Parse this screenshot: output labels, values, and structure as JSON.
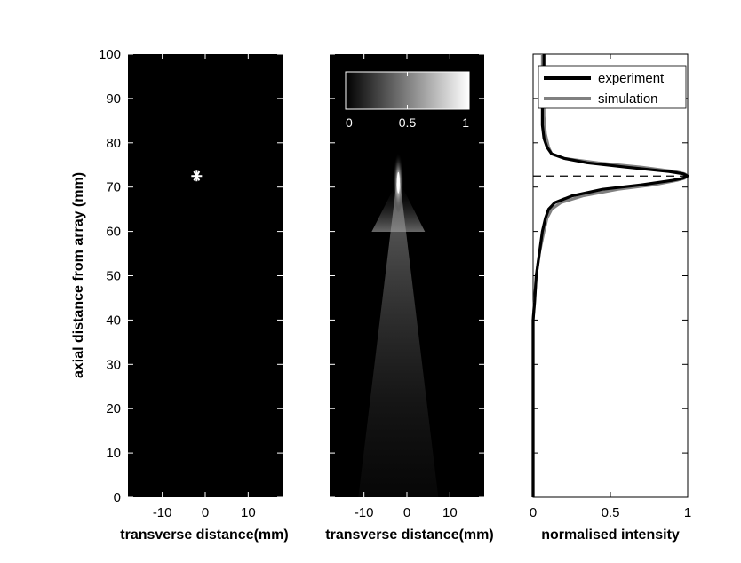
{
  "chart_data": [
    {
      "type": "scatter",
      "panel": "target-position",
      "background": "#000000",
      "xlabel": "transverse distance(mm)",
      "ylabel": "axial distance from array (mm)",
      "xlim": [
        -18,
        18
      ],
      "ylim": [
        100,
        0
      ],
      "x_ticks": [
        "-10",
        "0",
        "10"
      ],
      "y_ticks": [
        "0",
        "10",
        "20",
        "30",
        "40",
        "50",
        "60",
        "70",
        "80",
        "90",
        "100"
      ],
      "points": [
        {
          "x": -2,
          "y": 72.5,
          "marker": "*",
          "color": "#ffffff"
        }
      ]
    },
    {
      "type": "heatmap",
      "panel": "intensity-field",
      "xlabel": "transverse distance(mm)",
      "ylabel": "",
      "xlim": [
        -18,
        18
      ],
      "ylim": [
        100,
        0
      ],
      "x_ticks": [
        "-10",
        "0",
        "10"
      ],
      "colormap": "gray",
      "colorbar": {
        "range": [
          0,
          1
        ],
        "ticks": [
          "0",
          "0.5",
          "1"
        ],
        "location": "top-inset"
      },
      "focus": {
        "x": -2,
        "y": 71,
        "peak": 1.0
      }
    },
    {
      "type": "line",
      "panel": "axial-profile",
      "xlabel": "normalised intensity",
      "ylabel": "",
      "xlim": [
        0,
        1
      ],
      "ylim": [
        100,
        0
      ],
      "x_ticks": [
        "0",
        "0.5",
        "1"
      ],
      "legend": "top-right",
      "reference_line": {
        "y": 72.5,
        "style": "dashed"
      },
      "series": [
        {
          "name": "experiment",
          "color": "#000000",
          "axial_mm": [
            0,
            10,
            20,
            30,
            40,
            44,
            50,
            55,
            60,
            63,
            65,
            66.5,
            68,
            69.5,
            70.5,
            71.5,
            72,
            72.5,
            73,
            73.5,
            74.5,
            75.5,
            76.5,
            77.5,
            79,
            81,
            84,
            88,
            92,
            96,
            100
          ],
          "intensity": [
            0.0,
            0.0,
            0.0,
            0.0,
            0.0,
            0.01,
            0.02,
            0.04,
            0.06,
            0.08,
            0.1,
            0.14,
            0.25,
            0.45,
            0.7,
            0.9,
            0.97,
            1.0,
            0.97,
            0.88,
            0.6,
            0.35,
            0.2,
            0.12,
            0.09,
            0.07,
            0.06,
            0.06,
            0.07,
            0.07,
            0.07
          ]
        },
        {
          "name": "simulation",
          "color": "#808080",
          "axial_mm": [
            0,
            10,
            20,
            30,
            40,
            50,
            55,
            60,
            63,
            65,
            66.5,
            68,
            69.5,
            70.5,
            71.5,
            72,
            72.5,
            73,
            73.5,
            74.5,
            75.5,
            76.5,
            77.5,
            79,
            82,
            86,
            90,
            95,
            100
          ],
          "intensity": [
            0.0,
            0.0,
            0.0,
            0.0,
            0.0,
            0.02,
            0.04,
            0.07,
            0.09,
            0.12,
            0.18,
            0.32,
            0.55,
            0.78,
            0.93,
            0.98,
            1.0,
            0.98,
            0.92,
            0.7,
            0.42,
            0.2,
            0.12,
            0.1,
            0.08,
            0.07,
            0.07,
            0.06,
            0.06
          ]
        }
      ]
    }
  ]
}
